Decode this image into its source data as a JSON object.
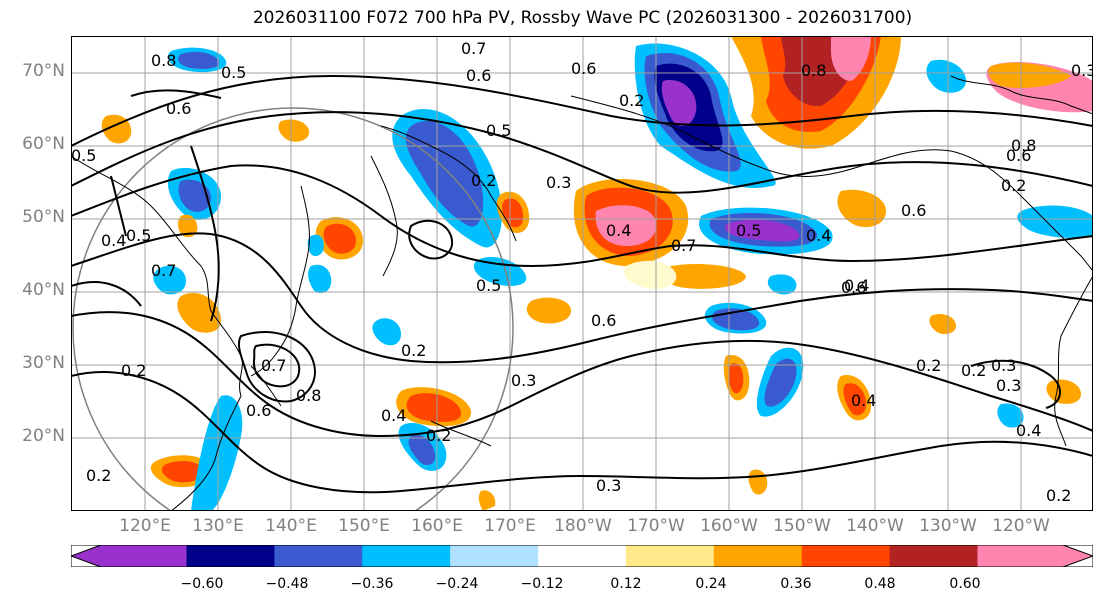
{
  "title": "2026031100 F072 700 hPa PV, Rossby Wave PC (2026031300 - 2026031700)",
  "lat_labels": [
    "70°N",
    "60°N",
    "50°N",
    "40°N",
    "30°N",
    "20°N"
  ],
  "lon_labels": [
    "120°E",
    "130°E",
    "140°E",
    "150°E",
    "160°E",
    "170°E",
    "180°W",
    "170°W",
    "160°W",
    "150°W",
    "140°W",
    "130°W",
    "120°W"
  ],
  "colorbar": {
    "colors": [
      "#9932cc",
      "#00008b",
      "#3a5bcf",
      "#00bfff",
      "#b0e2ff",
      "#ffffff",
      "#ffe98a",
      "#ffa500",
      "#ff4500",
      "#b22222",
      "#ff85b0"
    ],
    "tick_labels": [
      "−0.60",
      "−0.48",
      "−0.36",
      "−0.24",
      "−0.12",
      "0.12",
      "0.24",
      "0.36",
      "0.48",
      "0.60"
    ]
  },
  "contour_labels": [
    "0.8",
    "0.5",
    "0.7",
    "0.6",
    "0.6",
    "0.5",
    "0.6",
    "0.8",
    "0.5",
    "0.2",
    "0.4",
    "0.5",
    "0.7",
    "0.2",
    "0.3",
    "0.5",
    "0.4",
    "0.7",
    "0.5",
    "0.4",
    "0.4",
    "0.2",
    "0.7",
    "0.6",
    "0.8",
    "0.2",
    "0.4",
    "0.2",
    "0.3",
    "0.6",
    "0.2",
    "0.3",
    "0.2",
    "0.4",
    "0.8",
    "0.6",
    "0.2",
    "0.6",
    "0.3",
    "0.2",
    "0.4",
    "0.3",
    "0.2",
    "0.3",
    "0.6"
  ]
}
